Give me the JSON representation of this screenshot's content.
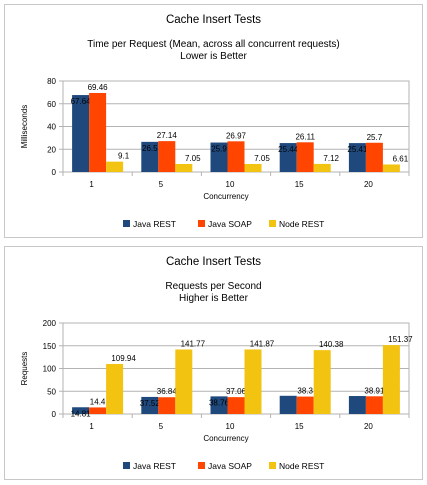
{
  "chart_data": [
    {
      "type": "bar",
      "title": "Cache Insert Tests",
      "subtitle_lines": [
        "Time per Request (Mean, across all concurrent requests)",
        "Lower is Better"
      ],
      "xlabel": "Concurrency",
      "ylabel": "Milliseconds",
      "ylim": [
        0,
        80
      ],
      "yticks": [
        0,
        20,
        40,
        60,
        80
      ],
      "grid": true,
      "legend_position": "bottom",
      "categories": [
        "1",
        "5",
        "10",
        "15",
        "20"
      ],
      "series": [
        {
          "name": "Java REST",
          "color": "#1f497d",
          "values": [
            67.64,
            26.5,
            25.9,
            25.44,
            25.41
          ],
          "labels": [
            "67.64",
            "26.5",
            "25.9",
            "25.44",
            "25.41"
          ]
        },
        {
          "name": "Java SOAP",
          "color": "#ff4500",
          "values": [
            69.46,
            27.14,
            26.97,
            26.11,
            25.7
          ],
          "labels": [
            "69.46",
            "27.14",
            "26.97",
            "26.11",
            "25.7"
          ]
        },
        {
          "name": "Node REST",
          "color": "#f2c311",
          "values": [
            9.1,
            7.05,
            7.05,
            7.12,
            6.61
          ],
          "labels": [
            "9.1",
            "7.05",
            "7.05",
            "7.12",
            "6.61"
          ]
        }
      ]
    },
    {
      "type": "bar",
      "title": "Cache Insert Tests",
      "subtitle_lines": [
        "Requests per Second",
        "Higher is Better"
      ],
      "xlabel": "Concurrency",
      "ylabel": "Requests",
      "ylim": [
        0,
        200
      ],
      "yticks": [
        0,
        50,
        100,
        150,
        200
      ],
      "grid": true,
      "legend_position": "bottom",
      "categories": [
        "1",
        "5",
        "10",
        "15",
        "20"
      ],
      "series": [
        {
          "name": "Java REST",
          "color": "#1f497d",
          "values": [
            14.81,
            37.52,
            38.76,
            40.0,
            39.5
          ],
          "labels": [
            "14.81",
            "37.52",
            "38.76",
            "",
            ""
          ]
        },
        {
          "name": "Java SOAP",
          "color": "#ff4500",
          "values": [
            14.4,
            36.84,
            37.06,
            38.3,
            38.91
          ],
          "labels": [
            "14.4",
            "36.84",
            "37.06",
            "38.3",
            "38.91"
          ]
        },
        {
          "name": "Node REST",
          "color": "#f2c311",
          "values": [
            109.94,
            141.77,
            141.87,
            140.38,
            151.37
          ],
          "labels": [
            "109.94",
            "141.77",
            "141.87",
            "140.38",
            "151.37"
          ]
        }
      ]
    }
  ]
}
